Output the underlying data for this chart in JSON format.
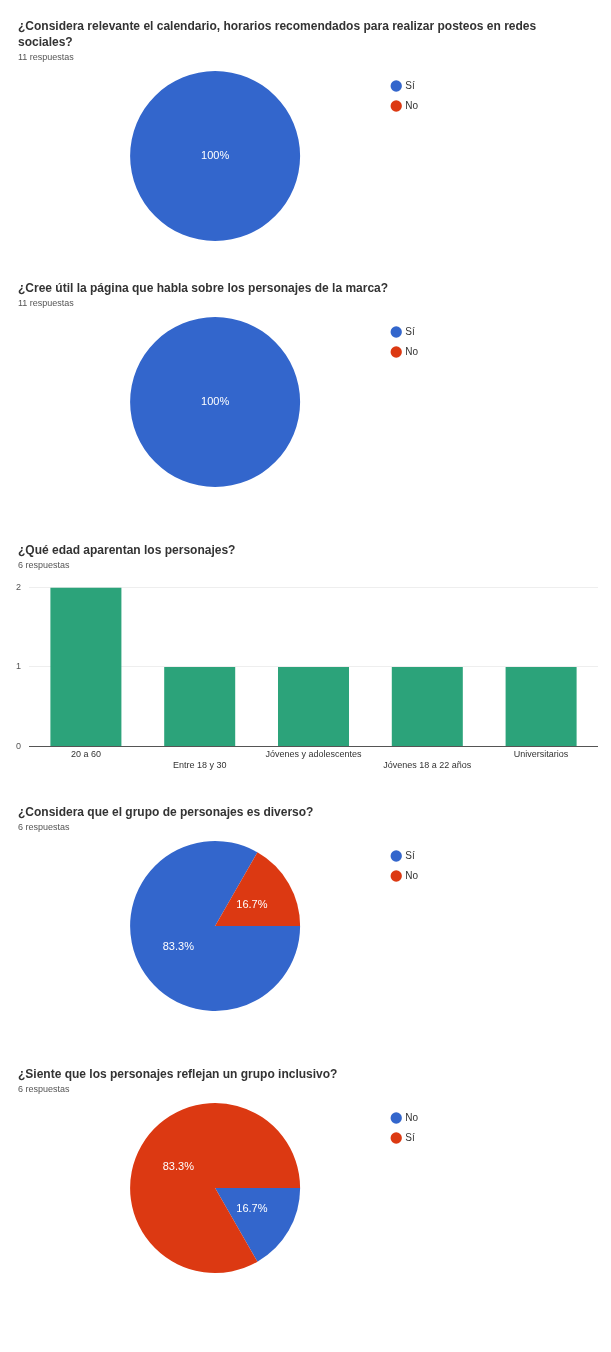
{
  "chart_data": [
    {
      "type": "pie",
      "title": "¿Considera relevante el calendario, horarios recomendados para realizar posteos en redes sociales?",
      "subtitle": "11 respuestas",
      "categories": [
        "Sí",
        "No"
      ],
      "values": [
        100,
        0
      ],
      "colors": [
        "#3366cc",
        "#dc3912"
      ],
      "value_labels": [
        "100%",
        null
      ],
      "legend": "right"
    },
    {
      "type": "pie",
      "title": "¿Cree útil la página que habla sobre los personajes de la marca?",
      "subtitle": "11 respuestas",
      "categories": [
        "Sí",
        "No"
      ],
      "values": [
        100,
        0
      ],
      "colors": [
        "#3366cc",
        "#dc3912"
      ],
      "value_labels": [
        "100%",
        null
      ],
      "legend": "right"
    },
    {
      "type": "bar",
      "title": "¿Qué edad aparentan los personajes?",
      "subtitle": "6 respuestas",
      "categories": [
        "20 a 60",
        "Entre 18 y 30",
        "Jóvenes y adolescentes",
        "Jóvenes 18 a 22 años",
        "Universitarios"
      ],
      "values": [
        2,
        1,
        1,
        1,
        1
      ],
      "color": "#2ca37a",
      "ylim": [
        0,
        2
      ],
      "yticks": [
        0,
        1,
        2
      ],
      "grid": "y",
      "legend": false
    },
    {
      "type": "pie",
      "title": "¿Considera que el grupo de personajes es diverso?",
      "subtitle": "6 respuestas",
      "categories": [
        "Sí",
        "No"
      ],
      "values": [
        83.3,
        16.7
      ],
      "colors": [
        "#3366cc",
        "#dc3912"
      ],
      "value_labels": [
        "83.3%",
        "16.7%"
      ],
      "legend": "right"
    },
    {
      "type": "pie",
      "title": "¿Siente que los personajes reflejan un grupo inclusivo?",
      "subtitle": "6 respuestas",
      "categories": [
        "No",
        "Sí"
      ],
      "values": [
        16.7,
        83.3
      ],
      "colors": [
        "#3366cc",
        "#dc3912"
      ],
      "value_labels": [
        "16.7%",
        "83.3%"
      ],
      "legend": "right"
    }
  ]
}
